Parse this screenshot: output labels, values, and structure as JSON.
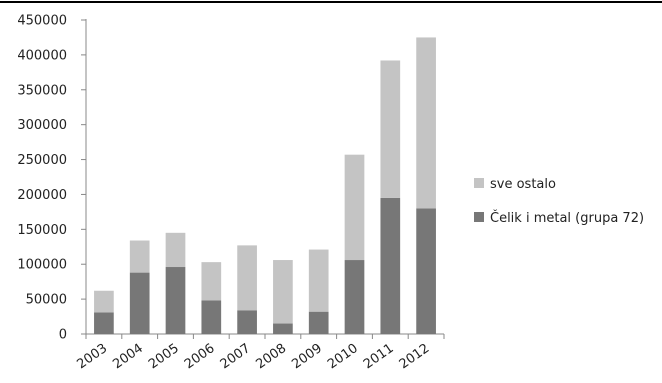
{
  "chart_data": {
    "type": "bar",
    "stacked": true,
    "categories": [
      "2003",
      "2004",
      "2005",
      "2006",
      "2007",
      "2008",
      "2009",
      "2010",
      "2011",
      "2012"
    ],
    "series": [
      {
        "name": "Čelik i metal (grupa 72)",
        "color": "#777777",
        "values": [
          31000,
          88000,
          96000,
          48000,
          34000,
          15000,
          32000,
          106000,
          195000,
          180000
        ]
      },
      {
        "name": "sve ostalo",
        "color": "#c4c4c4",
        "values": [
          31000,
          46000,
          49000,
          55000,
          93000,
          91000,
          89000,
          151000,
          197000,
          245000
        ]
      }
    ],
    "title": "",
    "xlabel": "",
    "ylabel": "",
    "ylim": [
      0,
      450000
    ],
    "yticks": [
      "0",
      "50000",
      "100000",
      "150000",
      "200000",
      "250000",
      "300000",
      "350000",
      "400000",
      "450000"
    ],
    "grid": false,
    "legend_position": "right",
    "legend_order": [
      "sve ostalo",
      "Čelik i metal (grupa 72)"
    ]
  }
}
